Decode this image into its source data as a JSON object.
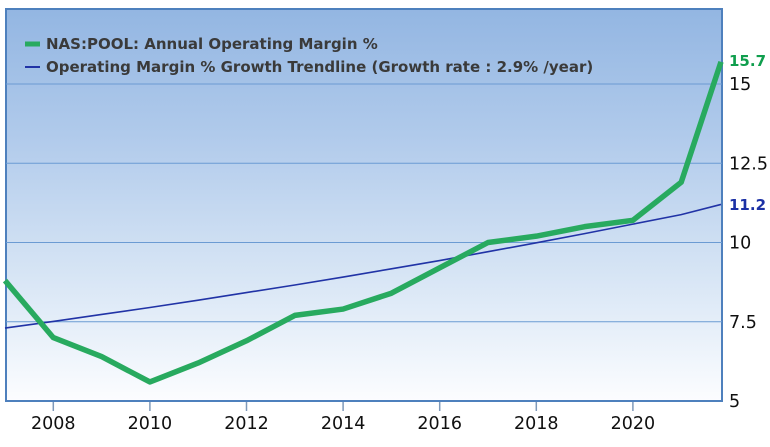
{
  "legend": {
    "series1": "NAS:POOL: Annual Operating Margin %",
    "series2": "Operating Margin % Growth Trendline (Growth rate : 2.9% /year)"
  },
  "end_labels": {
    "series": "15.7",
    "trendline": "11.2"
  },
  "colors": {
    "series_line": "#28aa5f",
    "trendline": "#2133a6",
    "plot_border": "#4e80bd",
    "gridline": "#6b9bd3",
    "tick_mark": "#7e99ba",
    "legend_text": "#3a3a3a",
    "axis_text": "#101010",
    "series_label": "#0f9e4d",
    "trendline_label": "#1c31a5",
    "bg_gradient_top": "#93b6e2",
    "bg_gradient_mid": "#b4cdec",
    "bg_gradient_bottom": "#fcfdff"
  },
  "chart_data": {
    "type": "line",
    "title": "NAS:POOL: Annual Operating Margin %",
    "xlabel": "",
    "ylabel": "Operating Margin %",
    "x": [
      2007,
      2008,
      2009,
      2010,
      2011,
      2012,
      2013,
      2014,
      2015,
      2016,
      2017,
      2018,
      2019,
      2020,
      2021,
      2022
    ],
    "series": [
      {
        "name": "NAS:POOL: Annual Operating Margin %",
        "color": "#28aa5f",
        "values": [
          8.8,
          7.0,
          6.4,
          5.6,
          6.2,
          6.9,
          7.7,
          7.9,
          8.4,
          9.2,
          10.0,
          10.2,
          10.5,
          10.7,
          11.9,
          15.7
        ],
        "end_label": "15.7"
      },
      {
        "name": "Operating Margin % Growth Trendline",
        "color": "#2133a6",
        "growth_rate_pct_per_year": 2.9,
        "values": [
          7.3,
          7.51,
          7.73,
          7.95,
          8.18,
          8.42,
          8.66,
          8.91,
          9.17,
          9.43,
          9.71,
          9.99,
          10.28,
          10.58,
          10.88,
          11.2
        ],
        "end_label": "11.2"
      }
    ],
    "xticks": [
      2008,
      2010,
      2012,
      2014,
      2016,
      2018,
      2020
    ],
    "yticks": [
      5,
      7.5,
      10,
      12.5,
      15
    ],
    "ylim": [
      5,
      17.4
    ],
    "xlim": [
      2007,
      2022
    ],
    "grid": true,
    "legend_position": "top-left"
  }
}
